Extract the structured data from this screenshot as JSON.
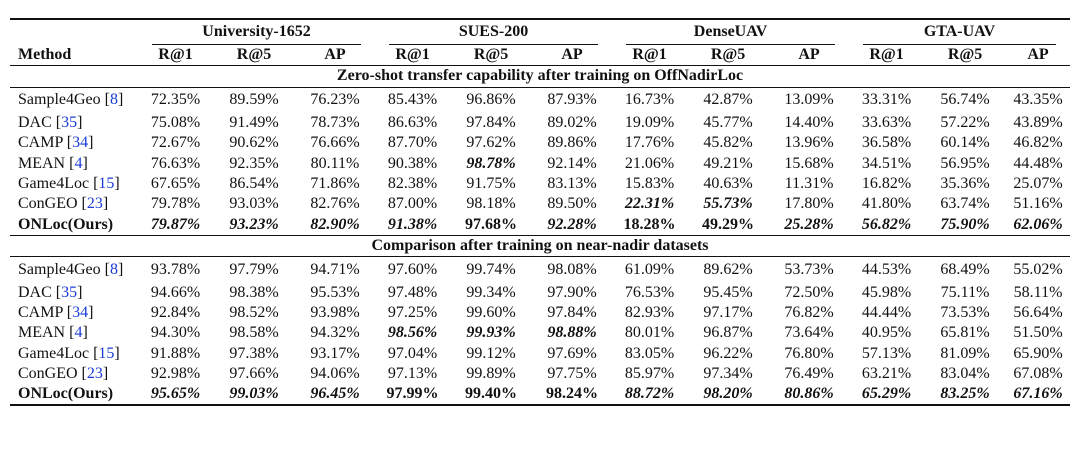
{
  "table": {
    "method_header": "Method",
    "datasets": [
      "University-1652",
      "SUES-200",
      "DenseUAV",
      "GTA-UAV"
    ],
    "metrics": [
      "R@1",
      "R@5",
      "AP"
    ],
    "sections": [
      {
        "title": "Zero-shot transfer capability after training on OffNadirLoc",
        "rows": [
          {
            "name": "Sample4Geo [",
            "ref": "8",
            "close": "]",
            "values": [
              "72.35%",
              "89.59%",
              "76.23%",
              "85.43%",
              "96.86%",
              "87.93%",
              "16.73%",
              "42.87%",
              "13.09%",
              "33.31%",
              "56.74%",
              "43.35%"
            ],
            "bold": [],
            "ours": false
          },
          {
            "name": "DAC [",
            "ref": "35",
            "close": "]",
            "values": [
              "75.08%",
              "91.49%",
              "78.73%",
              "86.63%",
              "97.84%",
              "89.02%",
              "19.09%",
              "45.77%",
              "14.40%",
              "33.63%",
              "57.22%",
              "43.89%"
            ],
            "bold": [],
            "ours": false
          },
          {
            "name": "CAMP [",
            "ref": "34",
            "close": "]",
            "values": [
              "72.67%",
              "90.62%",
              "76.66%",
              "87.70%",
              "97.62%",
              "89.86%",
              "17.76%",
              "45.82%",
              "13.96%",
              "36.58%",
              "60.14%",
              "46.82%"
            ],
            "bold": [],
            "ours": false
          },
          {
            "name": "MEAN [",
            "ref": "4",
            "close": "]",
            "values": [
              "76.63%",
              "92.35%",
              "80.11%",
              "90.38%",
              "98.78%",
              "92.14%",
              "21.06%",
              "49.21%",
              "15.68%",
              "34.51%",
              "56.95%",
              "44.48%"
            ],
            "bold": [
              4
            ],
            "ours": false
          },
          {
            "name": "Game4Loc [",
            "ref": "15",
            "close": "]",
            "values": [
              "67.65%",
              "86.54%",
              "71.86%",
              "82.38%",
              "91.75%",
              "83.13%",
              "15.83%",
              "40.63%",
              "11.31%",
              "16.82%",
              "35.36%",
              "25.07%"
            ],
            "bold": [],
            "ours": false
          },
          {
            "name": "ConGEO [",
            "ref": "23",
            "close": "]",
            "values": [
              "79.78%",
              "93.03%",
              "82.76%",
              "87.00%",
              "98.18%",
              "89.50%",
              "22.31%",
              "55.73%",
              "17.80%",
              "41.80%",
              "63.74%",
              "51.16%"
            ],
            "bold": [
              6,
              7
            ],
            "ours": false
          },
          {
            "name": "ONLoc(Ours)",
            "ref": "",
            "close": "",
            "values": [
              "79.87%",
              "93.23%",
              "82.90%",
              "91.38%",
              "97.68%",
              "92.28%",
              "18.28%",
              "49.29%",
              "25.28%",
              "56.82%",
              "75.90%",
              "62.06%"
            ],
            "bold": [
              0,
              1,
              2,
              3,
              5,
              8,
              9,
              10,
              11
            ],
            "ours": true
          }
        ]
      },
      {
        "title": "Comparison after training on near-nadir datasets",
        "rows": [
          {
            "name": "Sample4Geo [",
            "ref": "8",
            "close": "]",
            "values": [
              "93.78%",
              "97.79%",
              "94.71%",
              "97.60%",
              "99.74%",
              "98.08%",
              "61.09%",
              "89.62%",
              "53.73%",
              "44.53%",
              "68.49%",
              "55.02%"
            ],
            "bold": [],
            "ours": false
          },
          {
            "name": "DAC [",
            "ref": "35",
            "close": "]",
            "values": [
              "94.66%",
              "98.38%",
              "95.53%",
              "97.48%",
              "99.34%",
              "97.90%",
              "76.53%",
              "95.45%",
              "72.50%",
              "45.98%",
              "75.11%",
              "58.11%"
            ],
            "bold": [],
            "ours": false
          },
          {
            "name": "CAMP [",
            "ref": "34",
            "close": "]",
            "values": [
              "92.84%",
              "98.52%",
              "93.98%",
              "97.25%",
              "99.60%",
              "97.84%",
              "82.93%",
              "97.17%",
              "76.82%",
              "44.44%",
              "73.53%",
              "56.64%"
            ],
            "bold": [],
            "ours": false
          },
          {
            "name": "MEAN [",
            "ref": "4",
            "close": "]",
            "values": [
              "94.30%",
              "98.58%",
              "94.32%",
              "98.56%",
              "99.93%",
              "98.88%",
              "80.01%",
              "96.87%",
              "73.64%",
              "40.95%",
              "65.81%",
              "51.50%"
            ],
            "bold": [
              3,
              4,
              5
            ],
            "ours": false
          },
          {
            "name": "Game4Loc [",
            "ref": "15",
            "close": "]",
            "values": [
              "91.88%",
              "97.38%",
              "93.17%",
              "97.04%",
              "99.12%",
              "97.69%",
              "83.05%",
              "96.22%",
              "76.80%",
              "57.13%",
              "81.09%",
              "65.90%"
            ],
            "bold": [],
            "ours": false
          },
          {
            "name": "ConGEO [",
            "ref": "23",
            "close": "]",
            "values": [
              "92.98%",
              "97.66%",
              "94.06%",
              "97.13%",
              "99.89%",
              "97.75%",
              "85.97%",
              "97.34%",
              "76.49%",
              "63.21%",
              "83.04%",
              "67.08%"
            ],
            "bold": [],
            "ours": false
          },
          {
            "name": "ONLoc(Ours)",
            "ref": "",
            "close": "",
            "values": [
              "95.65%",
              "99.03%",
              "96.45%",
              "97.99%",
              "99.40%",
              "98.24%",
              "88.72%",
              "98.20%",
              "80.86%",
              "65.29%",
              "83.25%",
              "67.16%"
            ],
            "bold": [
              0,
              1,
              2,
              6,
              7,
              8,
              9,
              10,
              11
            ],
            "ours": true
          }
        ]
      }
    ]
  }
}
